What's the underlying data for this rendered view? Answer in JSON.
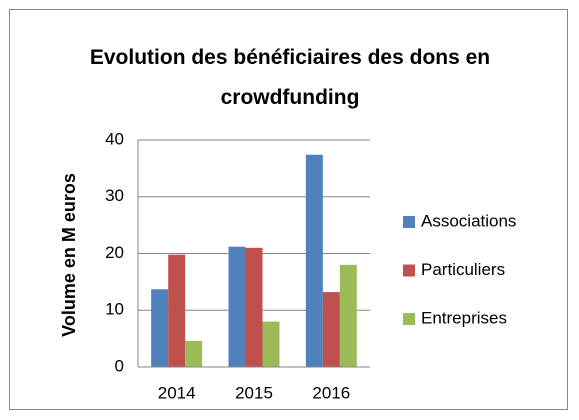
{
  "chart_data": {
    "type": "bar",
    "title": "Evolution des bénéficiaires des dons en crowdfunding",
    "y_label": "Volume en M euros",
    "categories": [
      "2014",
      "2015",
      "2016"
    ],
    "series": [
      {
        "name": "Associations",
        "color": "#4f81bd",
        "values": [
          13.7,
          21.2,
          37.4
        ]
      },
      {
        "name": "Particuliers",
        "color": "#c0504d",
        "values": [
          19.8,
          21,
          13.2
        ]
      },
      {
        "name": "Entreprises",
        "color": "#9bbb59",
        "values": [
          4.6,
          8,
          18
        ]
      }
    ],
    "ylim": [
      0,
      40
    ],
    "yticks": [
      0,
      10,
      20,
      30,
      40
    ],
    "grid": true,
    "legend": "right"
  }
}
